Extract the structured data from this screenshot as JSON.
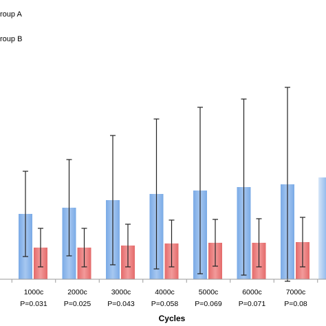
{
  "chart_data": {
    "type": "bar",
    "title": "",
    "xlabel": "Cycles",
    "ylabel": "",
    "categories": [
      "1000c",
      "2000c",
      "3000c",
      "4000c",
      "5000c",
      "6000c",
      "7000c"
    ],
    "p_values": [
      "P=0.031",
      "P=0.025",
      "P=0.043",
      "P=0.058",
      "P=0.069",
      "P=0.071",
      "P=0.08"
    ],
    "series": [
      {
        "name": "roup A",
        "color": "#8fb8ec",
        "values": [
          95,
          104,
          115,
          124,
          129,
          134,
          138
        ],
        "errors": [
          62,
          70,
          94,
          109,
          121,
          128,
          141
        ]
      },
      {
        "name": "roup B",
        "color": "#ec7f7f",
        "values": [
          46,
          46,
          49,
          52,
          53,
          53,
          54
        ],
        "errors": [
          28,
          28,
          31,
          34,
          34,
          35,
          36
        ]
      }
    ],
    "ylim": [
      0,
      290
    ],
    "legend_position": "top-left",
    "grid": false
  }
}
